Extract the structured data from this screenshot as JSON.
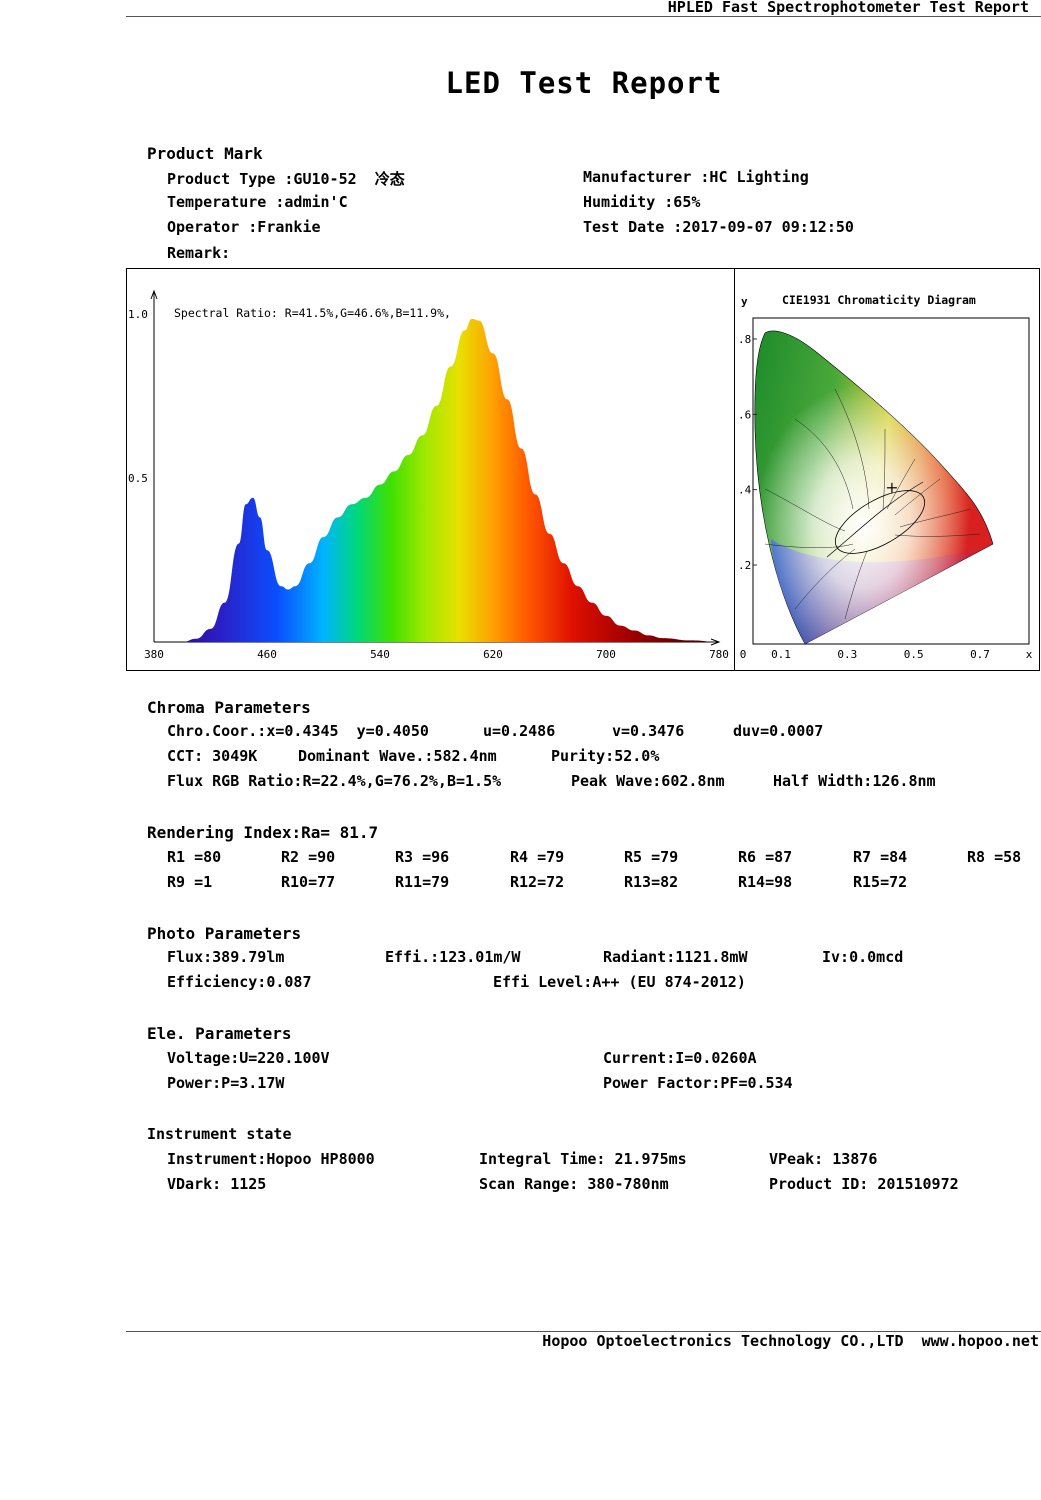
{
  "header": {
    "title": "HPLED Fast Spectrophotometer Test Report"
  },
  "report_title": "LED Test Report",
  "product": {
    "heading": "Product Mark",
    "product_type": "Product Type :GU10-52  冷态",
    "temperature": "Temperature :admin'C",
    "operator": "Operator :Frankie",
    "remark": "Remark:",
    "manufacturer": "Manufacturer :HC Lighting",
    "humidity": "Humidity :65%",
    "test_date": "Test Date :2017-09-07 09:12:50"
  },
  "chart_data": [
    {
      "type": "area",
      "title": "",
      "annotation": "Spectral Ratio:  R=41.5%,G=46.6%,B=11.9%,",
      "xlabel": "",
      "ylabel": "",
      "xlim": [
        380,
        780
      ],
      "ylim": [
        0,
        1.0
      ],
      "x_ticks": [
        "380",
        "460",
        "540",
        "620",
        "700",
        "780"
      ],
      "y_ticks": [
        "1.0",
        "0.5"
      ],
      "x": [
        380,
        400,
        410,
        420,
        430,
        440,
        445,
        450,
        455,
        460,
        470,
        475,
        480,
        490,
        500,
        510,
        520,
        530,
        540,
        550,
        560,
        570,
        580,
        590,
        600,
        605,
        610,
        620,
        630,
        640,
        650,
        660,
        670,
        680,
        690,
        700,
        710,
        720,
        730,
        740,
        760,
        780
      ],
      "y": [
        0.0,
        0.0,
        0.01,
        0.04,
        0.12,
        0.3,
        0.42,
        0.44,
        0.38,
        0.28,
        0.17,
        0.16,
        0.17,
        0.24,
        0.32,
        0.38,
        0.42,
        0.44,
        0.48,
        0.52,
        0.57,
        0.63,
        0.72,
        0.84,
        0.95,
        0.985,
        0.98,
        0.88,
        0.74,
        0.59,
        0.45,
        0.33,
        0.24,
        0.17,
        0.12,
        0.08,
        0.05,
        0.035,
        0.02,
        0.012,
        0.005,
        0.0
      ]
    },
    {
      "type": "scatter",
      "title": "CIE1931 Chromaticity Diagram",
      "xlabel": "x",
      "ylabel": "y",
      "xlim": [
        0,
        0.8
      ],
      "ylim": [
        0,
        0.9
      ],
      "x_ticks": [
        "0",
        "0.1",
        "0.3",
        "0.5",
        "0.7",
        "x"
      ],
      "y_ticks": [
        ".8",
        ".6",
        ".4",
        ".2"
      ],
      "points": [
        {
          "x": 0.4345,
          "y": 0.405
        }
      ]
    }
  ],
  "chroma": {
    "heading": "Chroma Parameters",
    "chro_coor": "Chro.Coor.:x=0.4345  y=0.4050",
    "u": "u=0.2486",
    "v": "v=0.3476",
    "duv": "duv=0.0007",
    "cct": "CCT: 3049K",
    "dominant_wave": "Dominant Wave.:582.4nm",
    "purity": "Purity:52.0%",
    "flux_rgb": "Flux RGB Ratio:R=22.4%,G=76.2%,B=1.5%",
    "peak_wave": "Peak Wave:602.8nm",
    "half_width": "Half Width:126.8nm"
  },
  "rendering": {
    "heading": "Rendering Index:Ra= 81.7",
    "row1": [
      "R1 =80",
      "R2 =90",
      "R3 =96",
      "R4 =79",
      "R5 =79",
      "R6 =87",
      "R7 =84",
      "R8 =58"
    ],
    "row2": [
      "R9 =1",
      "R10=77",
      "R11=79",
      "R12=72",
      "R13=82",
      "R14=98",
      "R15=72"
    ]
  },
  "photo": {
    "heading": "Photo Parameters",
    "flux": "Flux:389.79lm",
    "effi": "Effi.:123.01m/W",
    "radiant": "Radiant:1121.8mW",
    "iv": "Iv:0.0mcd",
    "efficiency": "Efficiency:0.087",
    "effi_level": "Effi Level:A++ (EU 874-2012)"
  },
  "electrical": {
    "heading": "Ele. Parameters",
    "voltage": "Voltage:U=220.100V",
    "current": "Current:I=0.0260A",
    "power": "Power:P=3.17W",
    "power_factor": "Power Factor:PF=0.534"
  },
  "instrument": {
    "heading": "Instrument state",
    "instrument": "Instrument:Hopoo HP8000",
    "integral_time": "Integral Time: 21.975ms",
    "vpeak": "VPeak: 13876",
    "vdark": "VDark: 1125",
    "scan_range": "Scan Range: 380-780nm",
    "product_id": "Product ID: 201510972"
  },
  "footer": {
    "text": "Hopoo Optoelectronics Technology CO.,LTD  www.hopoo.net"
  }
}
